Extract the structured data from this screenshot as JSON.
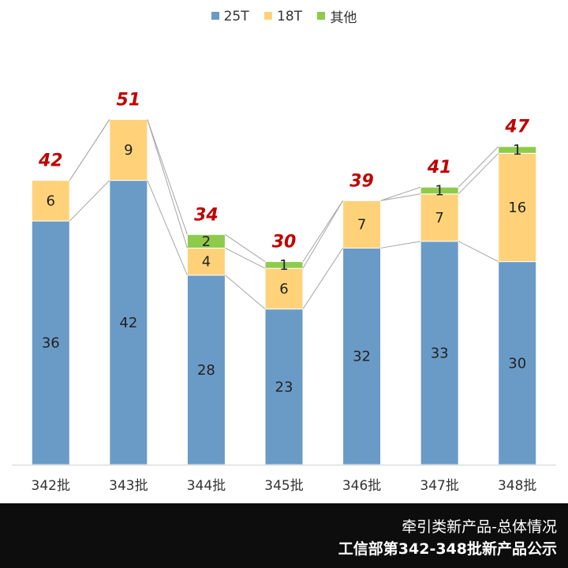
{
  "chart_data": {
    "type": "bar",
    "stacked": true,
    "categories": [
      "342批",
      "343批",
      "344批",
      "345批",
      "346批",
      "347批",
      "348批"
    ],
    "series": [
      {
        "name": "25T",
        "color": "#6a9bc7",
        "values": [
          36,
          42,
          28,
          23,
          32,
          33,
          30
        ]
      },
      {
        "name": "18T",
        "color": "#ffd27a",
        "values": [
          6,
          9,
          4,
          6,
          7,
          7,
          16
        ]
      },
      {
        "name": "其他",
        "color": "#8ecb4b",
        "values": [
          0,
          0,
          2,
          1,
          0,
          1,
          1
        ]
      }
    ],
    "totals": [
      42,
      51,
      34,
      30,
      39,
      41,
      47
    ],
    "total_color": "#c00000",
    "legend": {
      "position": "top-center"
    },
    "ylim": [
      0,
      62
    ],
    "grid": false,
    "title": ""
  },
  "footer": {
    "line1": "牵引类新产品-总体情况",
    "line2": "工信部第342-348批新产品公示"
  }
}
